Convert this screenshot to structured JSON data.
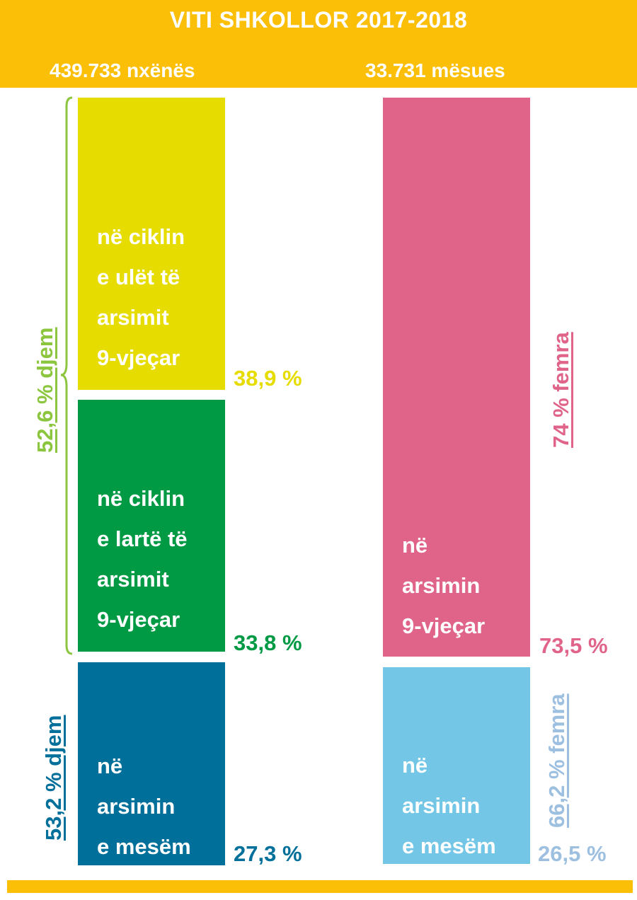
{
  "chart_data": {
    "type": "bar",
    "title": "VITI SHKOLLOR 2017-2018",
    "groups": [
      {
        "name": "439.733 nxënës",
        "total_label": "439.733 nxënës",
        "segments": [
          {
            "label": [
              "në ciklin",
              "e ulët të",
              "arsimit",
              "9-vjeçar"
            ],
            "value": 38.9,
            "value_label": "38,9 %",
            "color": "#e6dc00"
          },
          {
            "label": [
              "në ciklin",
              "e lartë të",
              "arsimit",
              "9-vjeçar"
            ],
            "value": 33.8,
            "value_label": "33,8 %",
            "color": "#009a44"
          },
          {
            "label": [
              "në",
              "arsimin",
              "e mesëm"
            ],
            "value": 27.3,
            "value_label": "27,3 %",
            "color": "#006f9a"
          }
        ],
        "annotations": [
          {
            "text": "52,6 % djem",
            "color": "#8cc63f"
          },
          {
            "text": "53,2 % djem",
            "color": "#006f9a"
          }
        ]
      },
      {
        "name": "33.731 mësues",
        "total_label": "33.731 mësues",
        "segments": [
          {
            "label": [
              "në",
              "arsimin",
              "9-vjeçar"
            ],
            "value": 73.5,
            "value_label": "73,5 %",
            "color": "#e0648a"
          },
          {
            "label": [
              "në",
              "arsimin",
              "e mesëm"
            ],
            "value": 26.5,
            "value_label": "26,5 %",
            "color": "#73c6e6"
          }
        ],
        "annotations": [
          {
            "text": "74 % femra",
            "color": "#e0648a"
          },
          {
            "text": "66,2 % femra",
            "color": "#9dbfe0"
          }
        ]
      }
    ],
    "colors": {
      "header": "#fbbf07",
      "pct_pale_blue": "#9dbfe0"
    }
  }
}
